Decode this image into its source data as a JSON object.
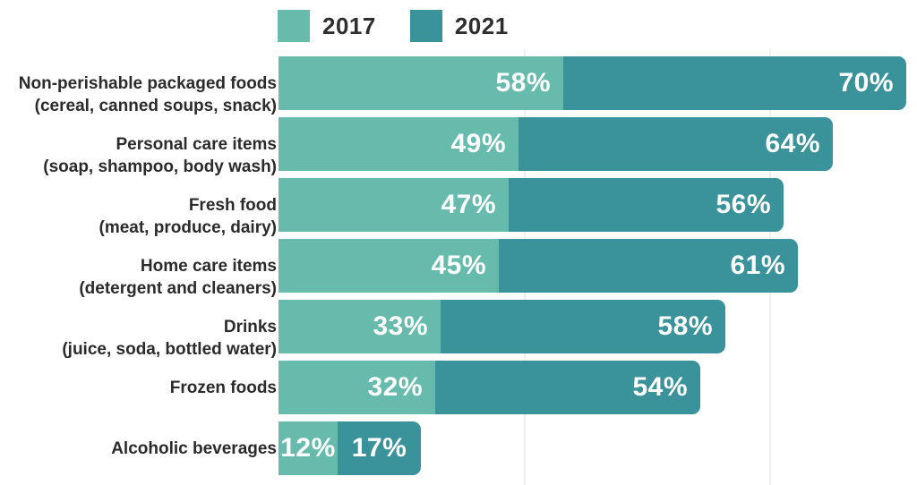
{
  "colors": {
    "series_2017": "#66bbac",
    "series_2021": "#3a929a",
    "value_text": "#ffffff",
    "category_text": "#2b2b2b",
    "gridline": "#efefef",
    "background": "#ffffff"
  },
  "legend": {
    "items": [
      {
        "label": "2017",
        "color": "#66bbac"
      },
      {
        "label": "2021",
        "color": "#3a929a"
      }
    ]
  },
  "chart_data": {
    "type": "bar",
    "orientation": "horizontal",
    "stacked": true,
    "title": "",
    "xlabel": "",
    "ylabel": "",
    "value_suffix": "%",
    "categories": [
      {
        "label": "Non-perishable packaged foods",
        "sublabel": "(cereal, canned soups, snack)"
      },
      {
        "label": "Personal care items",
        "sublabel": "(soap, shampoo, body wash)"
      },
      {
        "label": "Fresh food",
        "sublabel": "(meat, produce, dairy)"
      },
      {
        "label": "Home care items",
        "sublabel": "(detergent and cleaners)"
      },
      {
        "label": "Drinks",
        "sublabel": "(juice, soda, bottled water)"
      },
      {
        "label": "Frozen foods",
        "sublabel": ""
      },
      {
        "label": "Alcoholic beverages",
        "sublabel": ""
      }
    ],
    "series": [
      {
        "name": "2017",
        "color": "#66bbac",
        "values": [
          58,
          49,
          47,
          45,
          33,
          32,
          12
        ]
      },
      {
        "name": "2021",
        "color": "#3a929a",
        "values": [
          70,
          64,
          56,
          61,
          58,
          54,
          17
        ]
      }
    ],
    "gridline_values": [
      50,
      100
    ],
    "axis_range_sum": [
      0,
      130
    ],
    "legend_position": "top",
    "grid": "faint-vertical"
  }
}
